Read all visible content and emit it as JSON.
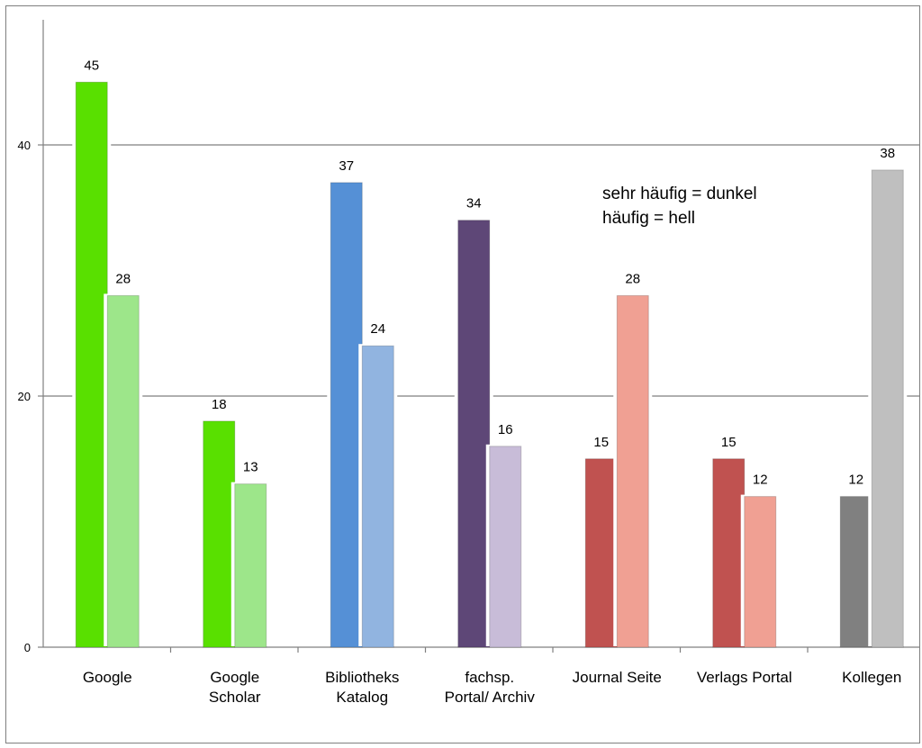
{
  "chart_data": {
    "type": "bar",
    "categories": [
      [
        "Google"
      ],
      [
        "Google",
        "Scholar"
      ],
      [
        "Bibliotheks",
        "Katalog"
      ],
      [
        "fachsp.",
        "Portal/ Archiv"
      ],
      [
        "Journal Seite"
      ],
      [
        "Verlags Portal"
      ],
      [
        "Kollegen"
      ]
    ],
    "series": [
      {
        "values": [
          45,
          18,
          37,
          34,
          15,
          15,
          12
        ]
      },
      {
        "values": [
          28,
          13,
          24,
          16,
          28,
          12,
          38
        ]
      }
    ],
    "bar_colors": [
      [
        "#59e000",
        "#9de68a"
      ],
      [
        "#59e000",
        "#9de68a"
      ],
      [
        "#5590d6",
        "#91b4e0"
      ],
      [
        "#5e4777",
        "#c8bcd8"
      ],
      [
        "#c05250",
        "#f0a093"
      ],
      [
        "#c05250",
        "#f0a093"
      ],
      [
        "#808080",
        "#bfbfbf"
      ]
    ],
    "ylim": [
      0,
      40
    ],
    "yticks": [
      "0",
      "20",
      "40"
    ],
    "grid": true,
    "annotation": [
      "sehr häufig = dunkel",
      "häufig = hell"
    ]
  }
}
